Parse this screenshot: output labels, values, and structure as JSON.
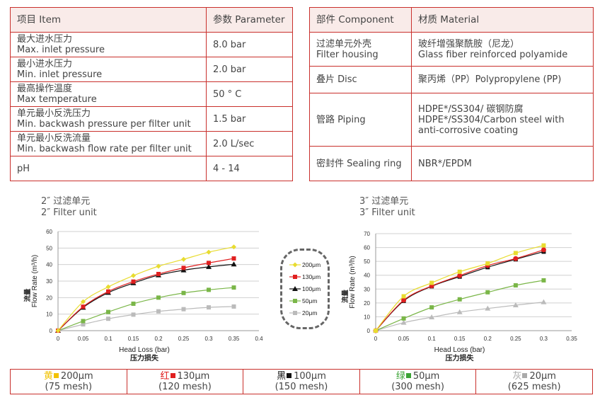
{
  "params_table": {
    "header": [
      "项目 Item",
      "参数 Parameter"
    ],
    "rows": [
      {
        "cn": "最大进水压力",
        "en": "Max. inlet pressure",
        "value": "8.0 bar"
      },
      {
        "cn": "最小进水压力",
        "en": "Min. inlet pressure",
        "value": "2.0 bar"
      },
      {
        "cn": "最高操作温度",
        "en": "Max temperature",
        "value": "50 ° C"
      },
      {
        "cn": "单元最小反洗压力",
        "en": "Min. backwash pressure per filter unit",
        "value": "1.5 bar"
      },
      {
        "cn": "单元最小反洗流量",
        "en": "Min. backwash flow rate per filter unit",
        "value": "2.0 L/sec"
      },
      {
        "cn": "pH",
        "en": "",
        "value": "4 - 14"
      }
    ]
  },
  "material_table": {
    "header": [
      "部件 Component",
      "材质 Material"
    ],
    "rows": [
      {
        "c1": "过滤单元外壳",
        "c2": "Filter housing",
        "m1": "玻纤增强聚酰胺（尼龙）",
        "m2": "Glass fiber reinforced polyamide"
      },
      {
        "c1": "叠片 Disc",
        "c2": "",
        "m1": "聚丙烯（PP）Polypropylene (PP)",
        "m2": ""
      },
      {
        "c1": "管路 Piping",
        "c2": "",
        "m1": "HDPE*/SS304/ 碳钢防腐",
        "m2": "HDPE*/SS304/Carbon steel with anti-corrosive coating"
      },
      {
        "c1": "密封件 Sealing ring",
        "c2": "",
        "m1": "NBR*/EPDM",
        "m2": ""
      }
    ]
  },
  "chart_data": [
    {
      "type": "line",
      "title_cn": "2″ 过滤单元",
      "title_en": "2″ Filter unit",
      "xlabel": "Head Loss (bar)",
      "xlabel_cn": "压力损失",
      "ylabel": "Flow Rate (m³/h)",
      "ylabel_cn": "流量",
      "xlim": [
        0,
        0.4
      ],
      "ylim": [
        0,
        60
      ],
      "xticks": [
        "0",
        "0.05",
        "0.1",
        "0.15",
        "0.2",
        "0.25",
        "0.3",
        "0.35",
        "0.4"
      ],
      "yticks": [
        "0",
        "10",
        "20",
        "30",
        "40",
        "50",
        "60"
      ],
      "grid": true,
      "x": [
        0,
        0.05,
        0.1,
        0.15,
        0.2,
        0.25,
        0.3,
        0.35
      ],
      "series": [
        {
          "name": "200μm",
          "color": "#e8dc30",
          "marker": "diamond",
          "values": [
            0,
            17.5,
            26.5,
            33.3,
            39,
            43.2,
            47.5,
            50.7
          ]
        },
        {
          "name": "130μm",
          "color": "#e02020",
          "marker": "square",
          "values": [
            0,
            14.5,
            23.7,
            29.7,
            34.3,
            38,
            41,
            43.7
          ]
        },
        {
          "name": "100μm",
          "color": "#111111",
          "marker": "triangle",
          "values": [
            0,
            14,
            23,
            28.8,
            33.6,
            36.6,
            38.6,
            40.2
          ]
        },
        {
          "name": "50μm",
          "color": "#7ab648",
          "marker": "square",
          "values": [
            0,
            5.8,
            11.3,
            16.3,
            20,
            22.8,
            24.7,
            26.1
          ]
        },
        {
          "name": "20μm",
          "color": "#bbbbbb",
          "marker": "square",
          "values": [
            0,
            3.8,
            7.2,
            9.7,
            11.7,
            13,
            14.1,
            14.6
          ]
        }
      ]
    },
    {
      "type": "line",
      "title_cn": "3″ 过滤单元",
      "title_en": "3″ Filter unit",
      "xlabel": "Head Loss (bar)",
      "xlabel_cn": "压力损失",
      "ylabel": "Flow Rate (m³/h)",
      "ylabel_cn": "流量",
      "xlim": [
        0,
        0.35
      ],
      "ylim": [
        0,
        70
      ],
      "xticks": [
        "0",
        "0.05",
        "0.1",
        "0.15",
        "0.2",
        "0.25",
        "0.3",
        "0.35"
      ],
      "yticks": [
        "0",
        "10",
        "20",
        "30",
        "40",
        "50",
        "60",
        "70"
      ],
      "grid": true,
      "x": [
        0,
        0.05,
        0.1,
        0.15,
        0.2,
        0.25,
        0.3
      ],
      "series": [
        {
          "color": "#e8dc30",
          "marker": "square",
          "values": [
            0,
            24.8,
            34.5,
            42.5,
            48.5,
            56,
            61.5
          ]
        },
        {
          "color": "#e02020",
          "marker": "circle",
          "values": [
            0,
            22,
            32.3,
            39.7,
            47,
            52,
            58.3
          ]
        },
        {
          "color": "#111111",
          "marker": "square",
          "values": [
            0,
            21.5,
            32,
            39,
            45.8,
            51.5,
            57
          ]
        },
        {
          "color": "#7ab648",
          "marker": "square",
          "values": [
            0,
            8.8,
            16.8,
            22.6,
            27.7,
            32.7,
            36.3
          ]
        },
        {
          "color": "#bbbbbb",
          "marker": "triangle",
          "values": [
            0,
            5.8,
            9.7,
            13.4,
            16,
            18.4,
            20.6
          ]
        }
      ]
    }
  ],
  "legend": [
    {
      "label": "200μm",
      "color": "#e8dc30"
    },
    {
      "label": "130μm",
      "color": "#e02020"
    },
    {
      "label": "100μm",
      "color": "#111111"
    },
    {
      "label": "50μm",
      "color": "#7ab648"
    },
    {
      "label": "20μm",
      "color": "#bbbbbb"
    }
  ],
  "mesh_table": [
    {
      "color_cn": "黄",
      "color": "#f2c200",
      "size": "200μm",
      "mesh": "(75 mesh)"
    },
    {
      "color_cn": "红",
      "color": "#e02020",
      "size": "130μm",
      "mesh": "(120 mesh)"
    },
    {
      "color_cn": "黑",
      "color": "#111111",
      "size": "100μm",
      "mesh": "(150 mesh)"
    },
    {
      "color_cn": "绿",
      "color": "#3aa335",
      "size": "50μm",
      "mesh": "(300 mesh)"
    },
    {
      "color_cn": "灰",
      "color": "#aaaaaa",
      "size": "20μm",
      "mesh": "(625 mesh)"
    }
  ]
}
